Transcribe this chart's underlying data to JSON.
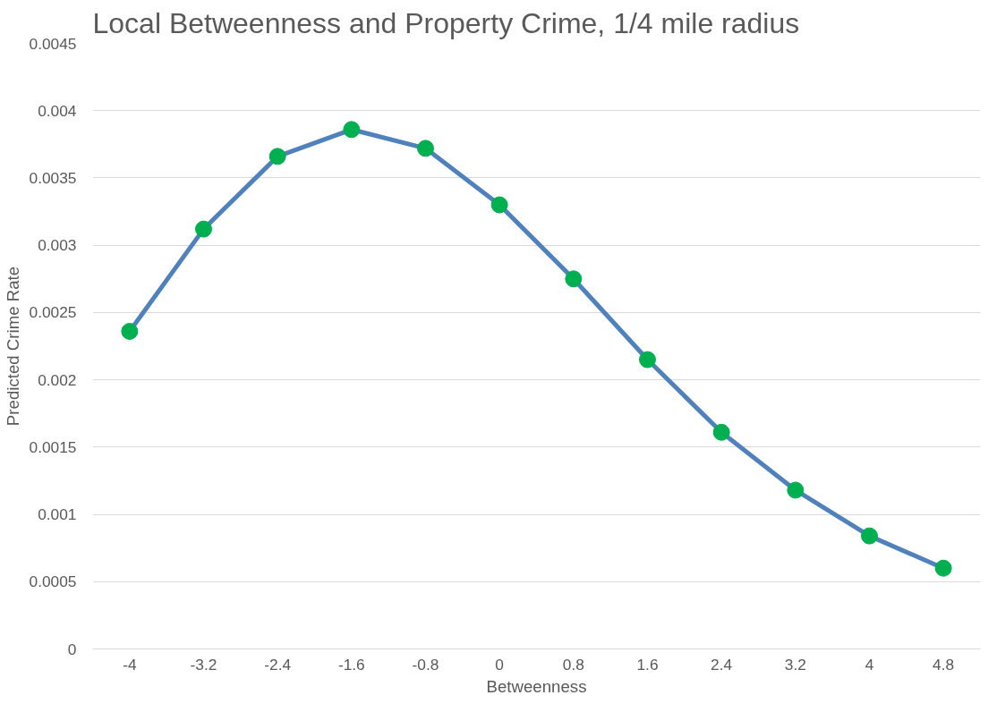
{
  "chart_data": {
    "type": "line",
    "title": "Local Betweenness and Property Crime, 1/4 mile radius",
    "xlabel": "Betweenness",
    "ylabel": "Predicted Crime Rate",
    "categories": [
      "-4",
      "-3.2",
      "-2.4",
      "-1.6",
      "-0.8",
      "0",
      "0.8",
      "1.6",
      "2.4",
      "3.2",
      "4",
      "4.8"
    ],
    "series": [
      {
        "color": "#4f81bd",
        "colors": [
          "#00b050",
          "#00b050",
          "#00b050",
          "#00b050",
          "#00b050",
          "#00b050",
          "#00b050",
          "#00b050",
          "#00b050",
          "#00b050",
          "#00b050",
          "#00b050"
        ],
        "values": [
          0.00236,
          0.00312,
          0.00366,
          0.00386,
          0.00372,
          0.0033,
          0.00275,
          0.00215,
          0.00161,
          0.00118,
          0.00084,
          0.0006
        ]
      }
    ],
    "ylim": [
      0,
      0.0045
    ],
    "yticks": [
      0,
      0.0005,
      0.001,
      0.0015,
      0.002,
      0.0025,
      0.003,
      0.0035,
      0.004,
      0.0045
    ],
    "grid": "y",
    "marker": "circle",
    "line_style": "solid"
  }
}
